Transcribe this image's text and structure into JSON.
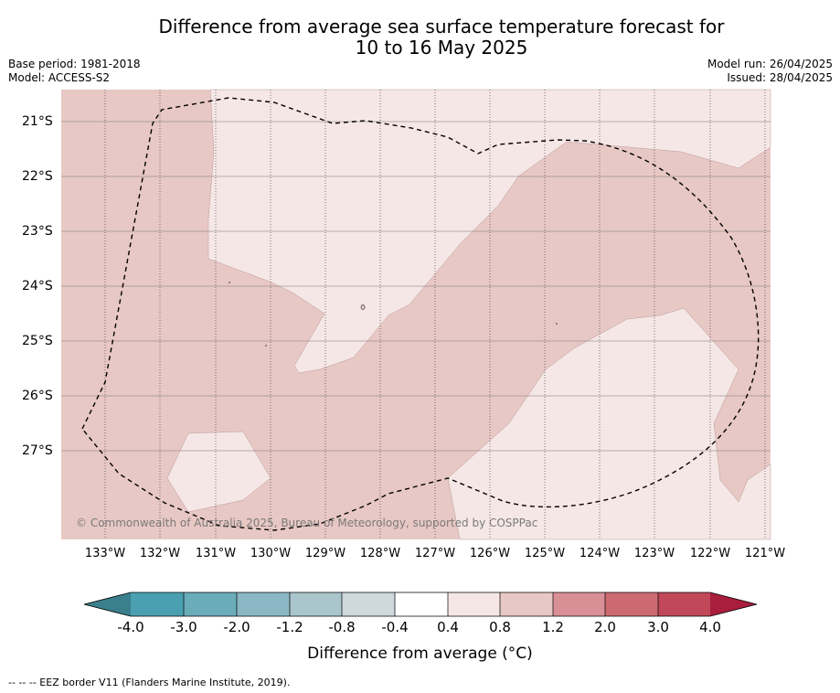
{
  "title_line1": "Difference from average sea surface temperature forecast for",
  "title_line2": "10 to 16 May 2025",
  "meta_left": [
    "Base period: 1981-2018",
    "Model: ACCESS-S2"
  ],
  "meta_right": [
    "Model run: 26/04/2025",
    "Issued: 28/04/2025"
  ],
  "lat_labels": [
    "21°S",
    "22°S",
    "23°S",
    "24°S",
    "25°S",
    "26°S",
    "27°S"
  ],
  "lon_labels": [
    "133°W",
    "132°W",
    "131°W",
    "130°W",
    "129°W",
    "128°W",
    "127°W",
    "126°W",
    "125°W",
    "124°W",
    "123°W",
    "122°W",
    "121°W"
  ],
  "copyright": "© Commonwealth of Australia 2025, Bureau of Meteorology, supported by COSPPac",
  "colorbar": {
    "tick_labels": [
      "-4.0",
      "-3.0",
      "-2.0",
      "-1.2",
      "-0.8",
      "-0.4",
      "0.4",
      "0.8",
      "1.2",
      "2.0",
      "3.0",
      "4.0"
    ],
    "colors": [
      "#4a9fb0",
      "#6aacba",
      "#8bb8c4",
      "#a9c6cc",
      "#cfd9dc",
      "#ffffff",
      "#f5e7e6",
      "#e8c8c4",
      "#d98f96",
      "#cc6a72",
      "#c04858"
    ],
    "under_color": "#3a7f8b",
    "over_color": "#a81e3c",
    "title": "Difference from average (°C)"
  },
  "map_colors": {
    "band_0.8_1.2": "#e8c8c4",
    "band_0.4_0.8": "#f5e7e6"
  },
  "footnote": "--  --  -- EEZ border V11 (Flanders Marine Institute, 2019)."
}
